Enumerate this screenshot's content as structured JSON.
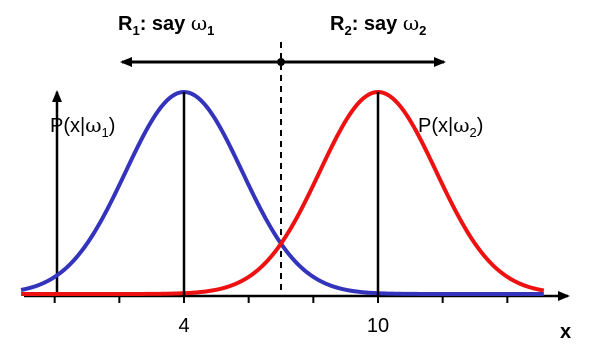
{
  "chart_data": {
    "type": "line",
    "x_label": "x",
    "x_range": [
      -2.3,
      15.5
    ],
    "tick_labels": [
      {
        "x": 4,
        "label": "4"
      },
      {
        "x": 10,
        "label": "10"
      }
    ],
    "minor_ticks": [
      0,
      2,
      4,
      6,
      8,
      10,
      12,
      14
    ],
    "series": [
      {
        "name": "P(x|ω1)",
        "name_parts": {
          "pre": "P(x|",
          "greek": "ω",
          "sub": "1",
          "post": ")"
        },
        "color": "#3333bb",
        "distribution": "gaussian",
        "mean": 4,
        "std": 1.8
      },
      {
        "name": "P(x|ω2)",
        "name_parts": {
          "pre": "P(x|",
          "greek": "ω",
          "sub": "2",
          "post": ")"
        },
        "color": "#ee1111",
        "distribution": "gaussian",
        "mean": 10,
        "std": 1.8
      }
    ],
    "decision_boundary": 7,
    "regions": [
      {
        "text": "R",
        "sub": "1",
        "say": ": say ",
        "greek": "ω",
        "greek_sub": "1"
      },
      {
        "text": "R",
        "sub": "2",
        "say": ": say ",
        "greek": "ω",
        "greek_sub": "2"
      }
    ],
    "grid": false,
    "legend": "none"
  }
}
